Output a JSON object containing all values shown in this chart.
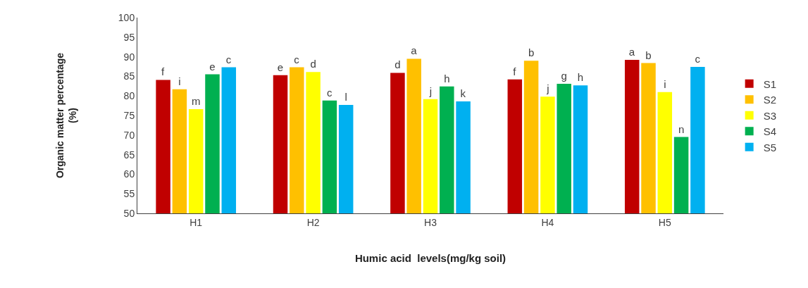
{
  "chart_data": {
    "type": "bar",
    "xlabel": "Humic acid  levels(mg/kg soil)",
    "ylabel": "Organic matter percentage\n(%)",
    "categories": [
      "H1",
      "H2",
      "H3",
      "H4",
      "H5"
    ],
    "series": [
      {
        "name": "S1",
        "color": "#c00000",
        "values": [
          84.1,
          85.3,
          85.9,
          84.2,
          89.2
        ],
        "value_labels": [
          "f",
          "e",
          "d",
          "f",
          "a"
        ]
      },
      {
        "name": "S2",
        "color": "#ffc000",
        "values": [
          81.7,
          87.3,
          89.5,
          89.0,
          88.4
        ],
        "value_labels": [
          "i",
          "c",
          "a",
          "b",
          "b"
        ]
      },
      {
        "name": "S3",
        "color": "#ffff00",
        "values": [
          76.6,
          86.1,
          79.2,
          79.8,
          81.0
        ],
        "value_labels": [
          "m",
          "d",
          "j",
          "j",
          "i"
        ]
      },
      {
        "name": "S4",
        "color": "#00b050",
        "values": [
          85.5,
          78.8,
          82.4,
          83.1,
          69.5
        ],
        "value_labels": [
          "e",
          "c",
          "h",
          "g",
          "n"
        ]
      },
      {
        "name": "S5",
        "color": "#00b0f0",
        "values": [
          87.3,
          77.7,
          78.6,
          82.7,
          87.4
        ],
        "value_labels": [
          "c",
          "l",
          "k",
          "h",
          "c"
        ]
      }
    ],
    "ylim": [
      50,
      100
    ],
    "yticks": [
      50,
      55,
      60,
      65,
      70,
      75,
      80,
      85,
      90,
      95,
      100
    ],
    "grid": false,
    "legend": "right"
  }
}
